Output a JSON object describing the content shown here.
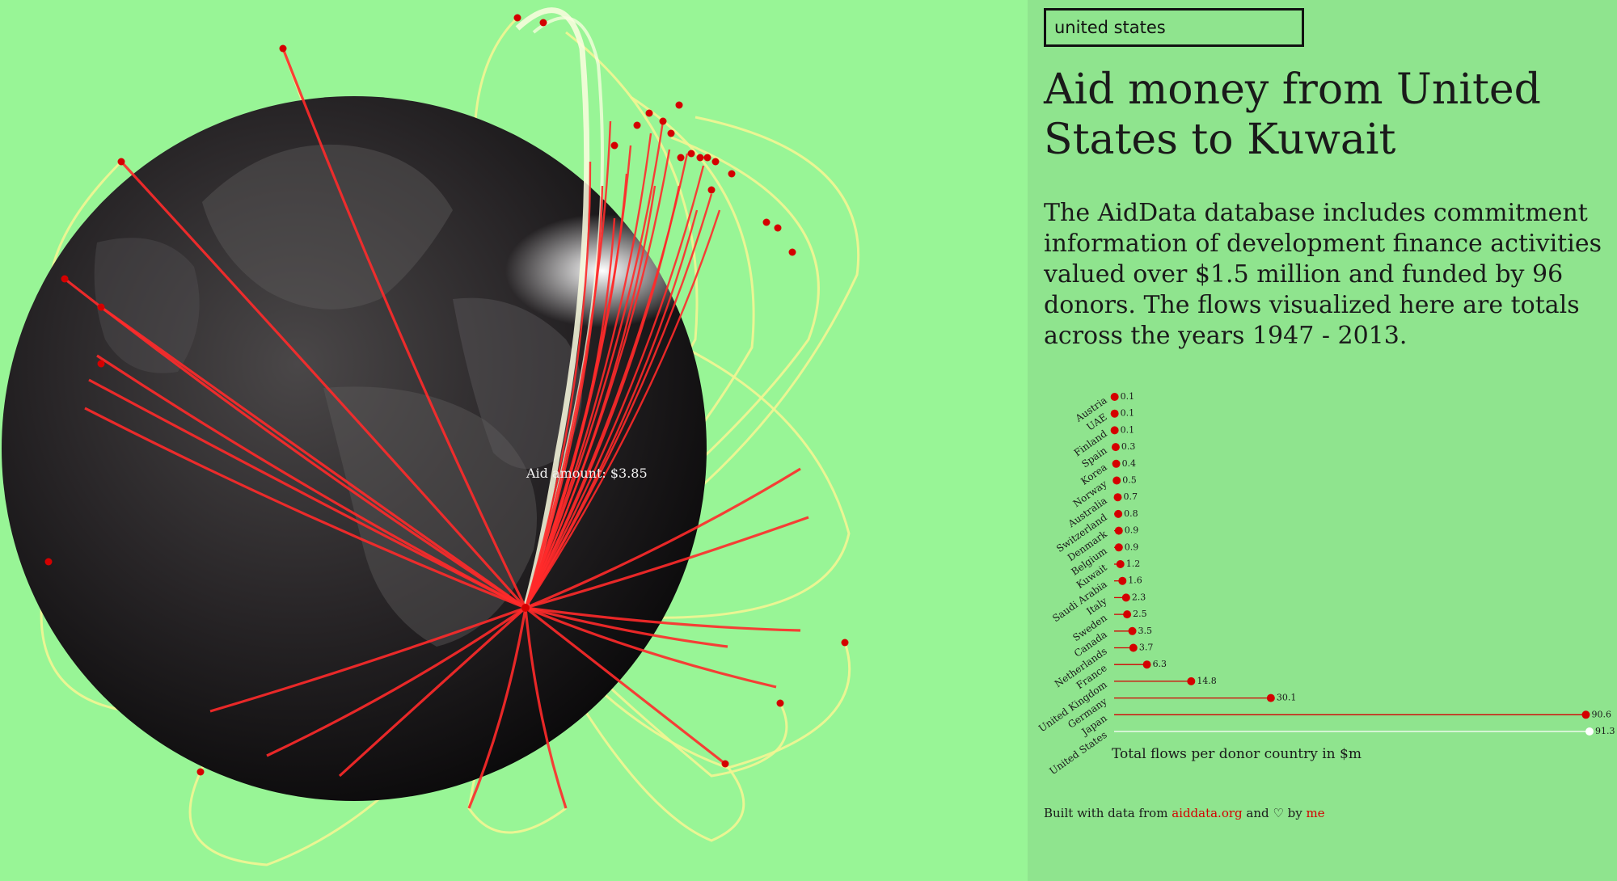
{
  "search": {
    "value": "united states"
  },
  "title": "Aid money from United States to Kuwait",
  "description": "The AidData database includes commitment information of development finance activities valued over $1.5 million and funded by 96 donors. The flows visualized here are totals across the years 1947 - 2013.",
  "tooltip": "Aid amount: $3.85",
  "footer": {
    "prefix": "Built with data from ",
    "link1": "aiddata.org",
    "middle": " and ♡ by ",
    "link2": "me"
  },
  "colors": {
    "background": "#98f596",
    "panel": "#8fe48e",
    "flow_line": "#ff2a2a",
    "flow_arc": "#f3f592",
    "marker": "#d40000",
    "selected_marker": "#ffffff",
    "link": "#d40000"
  },
  "chart_data": {
    "type": "lollipop",
    "title": "",
    "xlabel": "Total flows per donor country in $m",
    "ylabel": "",
    "categories": [
      "Austria",
      "UAE",
      "Finland",
      "Spain",
      "Korea",
      "Norway",
      "Australia",
      "Switzerland",
      "Denmark",
      "Belgium",
      "Kuwait",
      "Saudi Arabia",
      "Italy",
      "Sweden",
      "Canada",
      "Netherlands",
      "France",
      "United Kingdom",
      "Germany",
      "Japan",
      "United States"
    ],
    "values": [
      0.1,
      0.1,
      0.1,
      0.3,
      0.4,
      0.5,
      0.7,
      0.8,
      0.9,
      0.9,
      1.2,
      1.6,
      2.3,
      2.5,
      3.5,
      3.7,
      6.3,
      14.8,
      30.1,
      90.6,
      91.3
    ],
    "labels": [
      "0.1",
      "0.1",
      "0.1",
      "0.3",
      "0.4",
      "0.5",
      "0.7",
      "0.8",
      "0.9",
      "0.9",
      "1.2",
      "1.6",
      "2.3",
      "2.5",
      "3.5",
      "3.7",
      "6.3",
      "14.8",
      "30.1",
      "90.6",
      "91.3"
    ],
    "highlighted": "United States",
    "xlim": [
      0,
      91.3
    ],
    "grid": false
  }
}
